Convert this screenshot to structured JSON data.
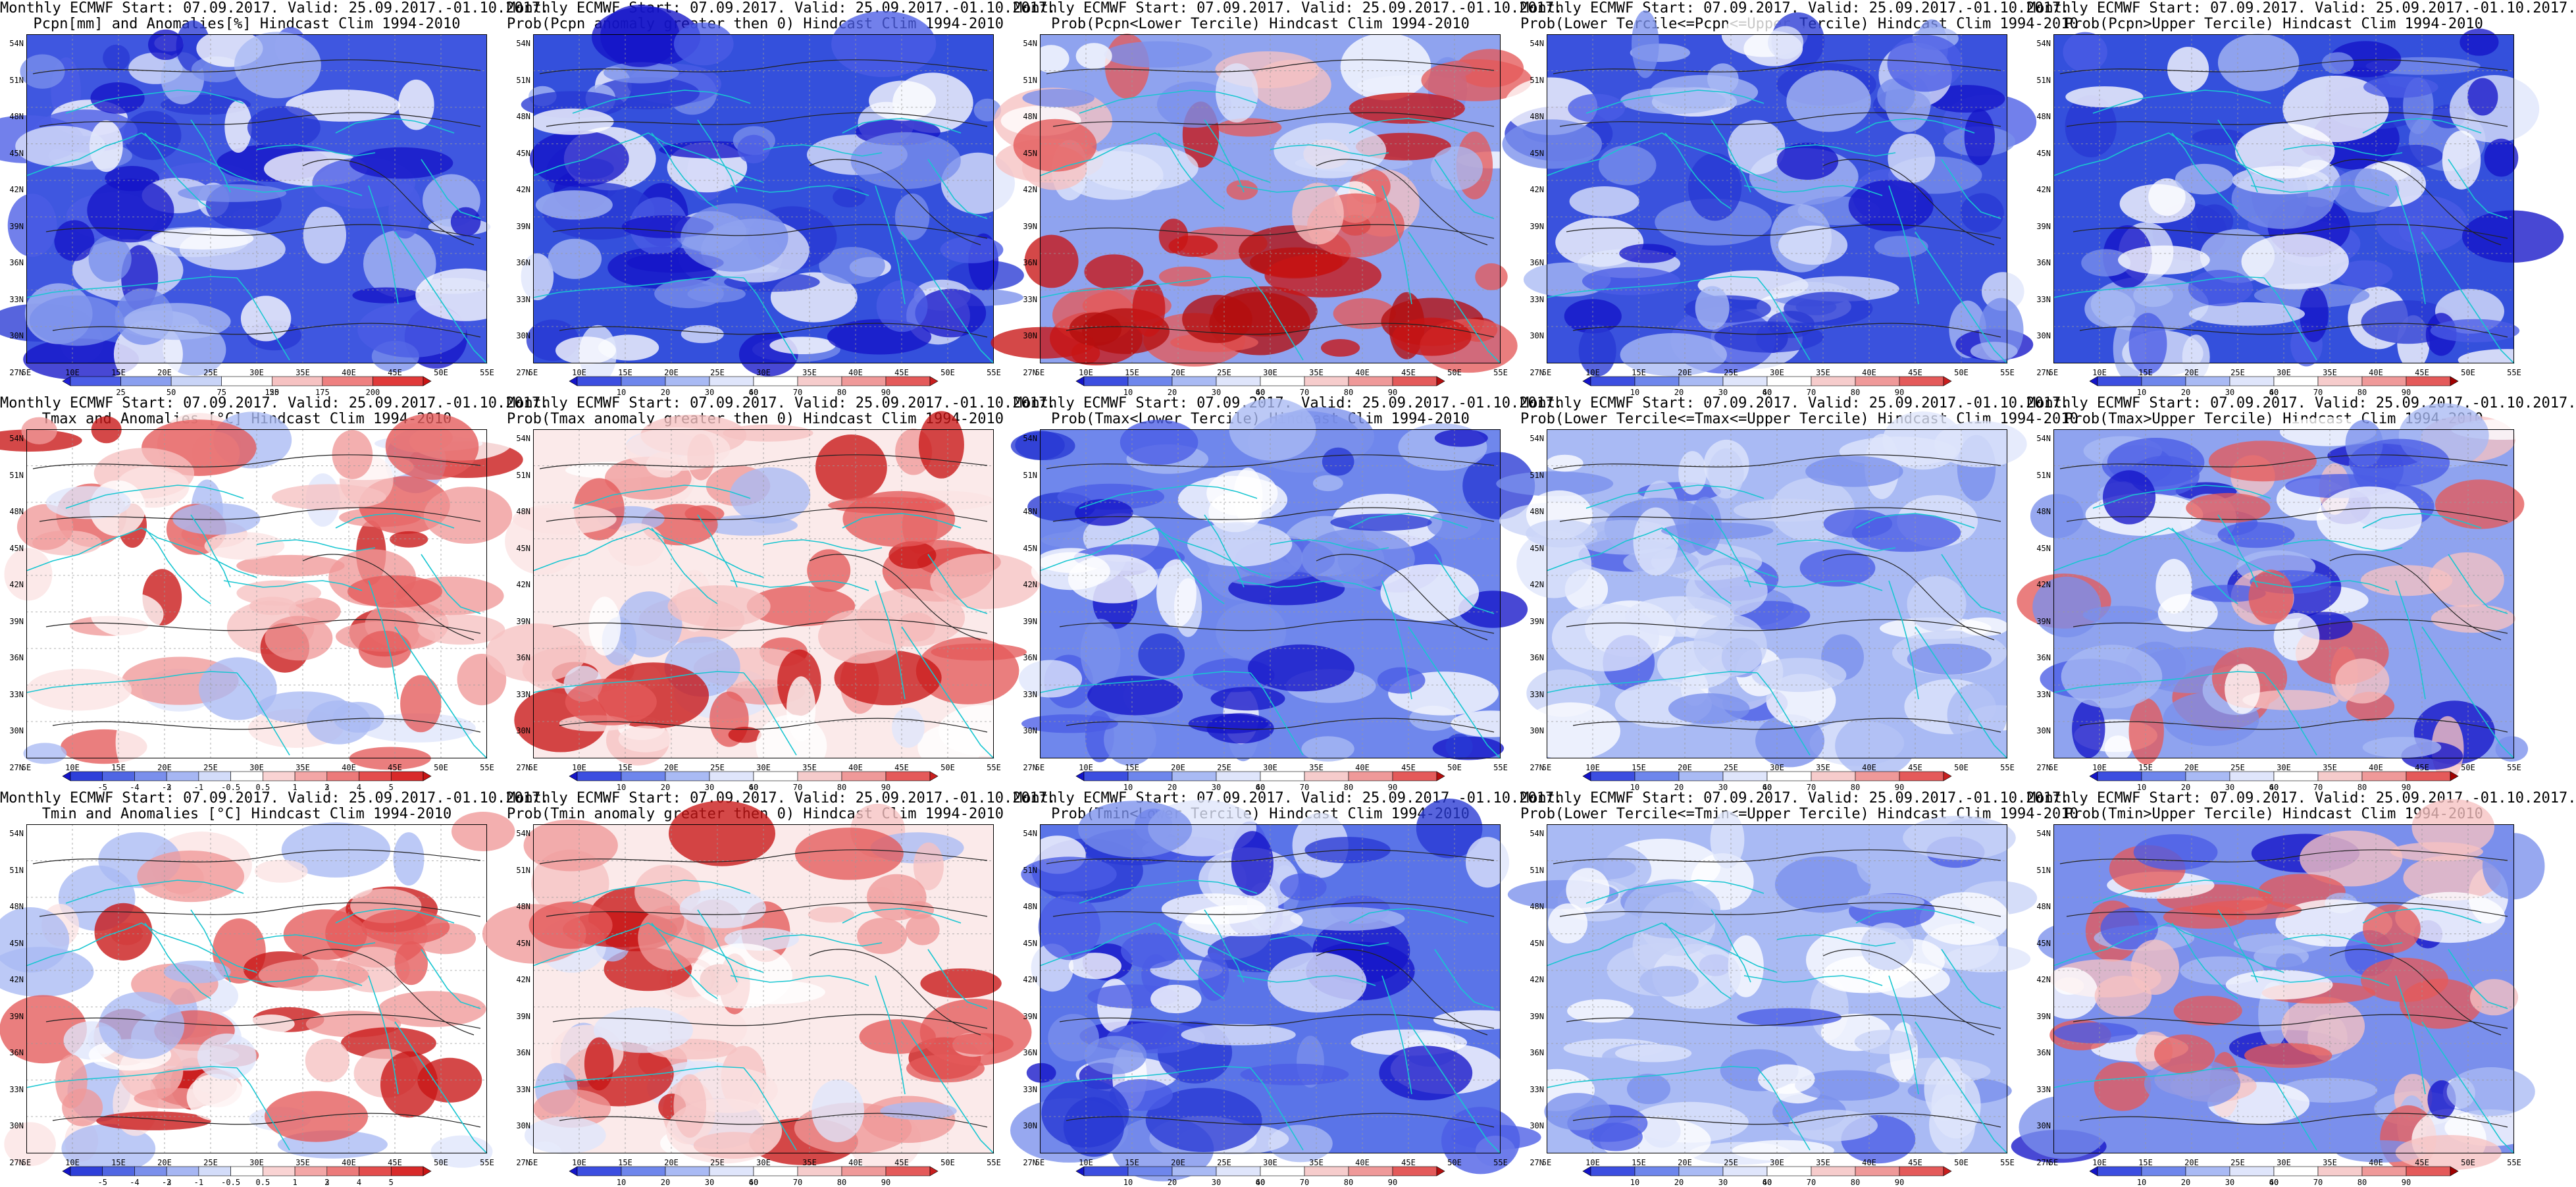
{
  "layout": {
    "columns": 5,
    "rows": 3
  },
  "axes": {
    "lat_labels": [
      "54N",
      "51N",
      "48N",
      "45N",
      "42N",
      "39N",
      "36N",
      "33N",
      "30N",
      "27N"
    ],
    "lon_labels": [
      "5E",
      "10E",
      "15E",
      "20E",
      "25E",
      "30E",
      "35E",
      "40E",
      "45E",
      "50E",
      "55E"
    ]
  },
  "colorbars": {
    "pcpn_anom": {
      "labels": [
        "25",
        "50",
        "75",
        "125",
        "150",
        "175",
        "200"
      ],
      "colors": [
        "#1f1fd6",
        "#4a5ce6",
        "#8a9fef",
        "#c9d4f7",
        "#ffffff",
        "#f6c2c2",
        "#ee8080",
        "#e03a3a",
        "#c81414"
      ]
    },
    "prob_anom": {
      "labels": [
        "10",
        "20",
        "30",
        "40",
        "60",
        "70",
        "80",
        "90"
      ],
      "colors": [
        "#1414c8",
        "#3c4ee0",
        "#6e86ec",
        "#a9baf4",
        "#dfe5fb",
        "#ffffff",
        "#f6cccc",
        "#ef9999",
        "#e45a5a",
        "#c81e1e"
      ]
    },
    "prob_lower": {
      "labels": [
        "10",
        "20",
        "30",
        "40",
        "60",
        "70",
        "80",
        "90"
      ],
      "colors": [
        "#1414c8",
        "#3c4ee0",
        "#6e86ec",
        "#a9baf4",
        "#dfe5fb",
        "#ffffff",
        "#f6cccc",
        "#ef9999",
        "#e45a5a",
        "#b40e0e"
      ]
    },
    "prob_mid": {
      "labels": [
        "10",
        "20",
        "30",
        "40",
        "60",
        "70",
        "80",
        "90"
      ],
      "colors": [
        "#1414c8",
        "#3c4ee0",
        "#6e86ec",
        "#a9baf4",
        "#dfe5fb",
        "#ffffff",
        "#f6cccc",
        "#ef9999",
        "#e45a5a",
        "#c81e1e"
      ]
    },
    "prob_upper": {
      "labels": [
        "10",
        "20",
        "30",
        "40",
        "60",
        "70",
        "80",
        "90"
      ],
      "colors": [
        "#1414c8",
        "#3c4ee0",
        "#6e86ec",
        "#a9baf4",
        "#dfe5fb",
        "#ffffff",
        "#f6cccc",
        "#ef9999",
        "#e45a5a",
        "#a00000"
      ]
    },
    "temp_anom": {
      "labels": [
        "-5",
        "-4",
        "-3",
        "-2",
        "-1",
        "-0.5",
        "0.5",
        "1",
        "2",
        "3",
        "4",
        "5"
      ],
      "colors": [
        "#1414c8",
        "#2e3fd9",
        "#5066e3",
        "#7a8fec",
        "#a6b6f3",
        "#d3dcf9",
        "#ffffff",
        "#f9d3d3",
        "#f3a6a6",
        "#ec7a7a",
        "#e34d4d",
        "#d82a2a",
        "#c81414"
      ]
    }
  },
  "panels": [
    {
      "id": "pcpn-anomaly",
      "line1": "Monthly ECMWF Start: 07.09.2017. Valid: 25.09.2017.-01.10.2017.",
      "line2": "Pcpn[mm] and Anomalies[%] Hindcast Clim 1994-2010",
      "colorbar": "pcpn_anom",
      "palette": "blue",
      "base": "#3f57e0"
    },
    {
      "id": "pcpn-prob-gt0",
      "line1": "Monthly ECMWF Start: 07.09.2017. Valid: 25.09.2017.-01.10.2017.",
      "line2": "Prob(Pcpn anomaly greater then 0) Hindcast Clim 1994-2010",
      "colorbar": "prob_anom",
      "palette": "blue",
      "base": "#3450dc"
    },
    {
      "id": "pcpn-prob-lower",
      "line1": "Monthly ECMWF Start: 07.09.2017. Valid: 25.09.2017.-01.10.2017.",
      "line2": "Prob(Pcpn<Lower Tercile) Hindcast Clim 1994-2010",
      "colorbar": "prob_lower",
      "palette": "redsouth",
      "base": "#8fa3ef"
    },
    {
      "id": "pcpn-prob-mid",
      "line1": "Monthly ECMWF Start: 07.09.2017. Valid: 25.09.2017.-01.10.2017.",
      "line2": "Prob(Lower Tercile<=Pcpn<=Upper Tercile) Hindcast Clim 1994-2010",
      "colorbar": "prob_mid",
      "palette": "blue",
      "base": "#3a52dd"
    },
    {
      "id": "pcpn-prob-upper",
      "line1": "Monthly ECMWF Start: 07.09.2017. Valid: 25.09.2017.-01.10.2017.",
      "line2": "Prob(Pcpn>Upper Tercile) Hindcast Clim 1994-2010",
      "colorbar": "prob_upper",
      "palette": "blue",
      "base": "#3450dc"
    },
    {
      "id": "tmax-anomaly",
      "line1": "Monthly ECMWF Start: 07.09.2017. Valid: 25.09.2017.-01.10.2017.",
      "line2": "Tmax and Anomalies [°C] Hindcast Clim 1994-2010",
      "colorbar": "temp_anom",
      "palette": "redeast",
      "base": "#ffffff"
    },
    {
      "id": "tmax-prob-gt0",
      "line1": "Monthly ECMWF Start: 07.09.2017. Valid: 25.09.2017.-01.10.2017.",
      "line2": "Prob(Tmax anomaly greater then 0) Hindcast Clim 1994-2010",
      "colorbar": "prob_anom",
      "palette": "redeast",
      "base": "#fbeaea"
    },
    {
      "id": "tmax-prob-lower",
      "line1": "Monthly ECMWF Start: 07.09.2017. Valid: 25.09.2017.-01.10.2017.",
      "line2": "Prob(Tmax<Lower Tercile) Hindcast Clim 1994-2010",
      "colorbar": "prob_lower",
      "palette": "blue",
      "base": "#6f87ec"
    },
    {
      "id": "tmax-prob-mid",
      "line1": "Monthly ECMWF Start: 07.09.2017. Valid: 25.09.2017.-01.10.2017.",
      "line2": "Prob(Lower Tercile<=Tmax<=Upper Tercile) Hindcast Clim 1994-2010",
      "colorbar": "prob_mid",
      "palette": "lightblue",
      "base": "#a9baf4"
    },
    {
      "id": "tmax-prob-upper",
      "line1": "Monthly ECMWF Start: 07.09.2017. Valid: 25.09.2017.-01.10.2017.",
      "line2": "Prob(Tmax>Upper Tercile) Hindcast Clim 1994-2010",
      "colorbar": "prob_upper",
      "palette": "mixed",
      "base": "#8fa3ef"
    },
    {
      "id": "tmin-anomaly",
      "line1": "Monthly ECMWF Start: 07.09.2017. Valid: 25.09.2017.-01.10.2017.",
      "line2": "Tmin and Anomalies [°C] Hindcast Clim 1994-2010",
      "colorbar": "temp_anom",
      "palette": "redeast",
      "base": "#ffffff"
    },
    {
      "id": "tmin-prob-gt0",
      "line1": "Monthly ECMWF Start: 07.09.2017. Valid: 25.09.2017.-01.10.2017.",
      "line2": "Prob(Tmin anomaly greater then 0) Hindcast Clim 1994-2010",
      "colorbar": "prob_anom",
      "palette": "redeast",
      "base": "#fbeaea"
    },
    {
      "id": "tmin-prob-lower",
      "line1": "Monthly ECMWF Start: 07.09.2017. Valid: 25.09.2017.-01.10.2017.",
      "line2": "Prob(Tmin<Lower Tercile) Hindcast Clim 1994-2010",
      "colorbar": "prob_lower",
      "palette": "blue",
      "base": "#5a74e8"
    },
    {
      "id": "tmin-prob-mid",
      "line1": "Monthly ECMWF Start: 07.09.2017. Valid: 25.09.2017.-01.10.2017.",
      "line2": "Prob(Lower Tercile<=Tmin<=Upper Tercile) Hindcast Clim 1994-2010",
      "colorbar": "prob_mid",
      "palette": "lightblue",
      "base": "#a9baf4"
    },
    {
      "id": "tmin-prob-upper",
      "line1": "Monthly ECMWF Start: 07.09.2017. Valid: 25.09.2017.-01.10.2017.",
      "line2": "Prob(Tmin>Upper Tercile) Hindcast Clim 1994-2010",
      "colorbar": "prob_upper",
      "palette": "mixed",
      "base": "#7a8fec"
    }
  ]
}
